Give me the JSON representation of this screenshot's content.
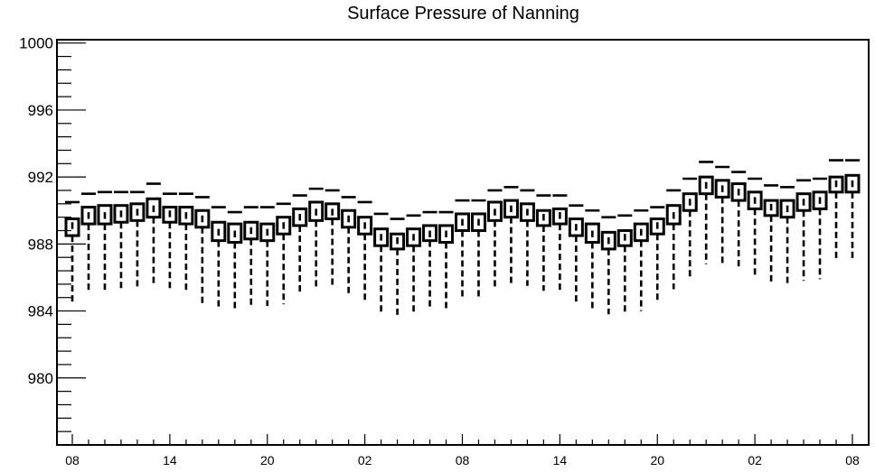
{
  "chart_data": {
    "type": "box",
    "title": "Surface Pressure of Nanning",
    "xlabel": "",
    "ylabel": "",
    "ylim": [
      976,
      1000.2
    ],
    "y_ticks": [
      980,
      984,
      988,
      992,
      996,
      1000
    ],
    "y_tick_labels": [
      "980",
      "984",
      "988",
      "992",
      "996",
      "1000"
    ],
    "x_tick_labels": [
      "08",
      "14",
      "20",
      "02",
      "08",
      "14",
      "20",
      "02",
      "08"
    ],
    "x_tick_positions": [
      0,
      6,
      12,
      18,
      24,
      30,
      36,
      42,
      48
    ],
    "grid": false,
    "series": [
      {
        "box_ranges": [
          [
            988.5,
            989.5
          ],
          [
            989.2,
            990.2
          ],
          [
            989.2,
            990.3
          ],
          [
            989.3,
            990.3
          ],
          [
            989.4,
            990.4
          ],
          [
            989.6,
            990.7
          ],
          [
            989.3,
            990.2
          ],
          [
            989.2,
            990.2
          ],
          [
            989.0,
            990.0
          ],
          [
            988.2,
            989.3
          ],
          [
            988.1,
            989.2
          ],
          [
            988.3,
            989.3
          ],
          [
            988.2,
            989.2
          ],
          [
            988.6,
            989.6
          ],
          [
            989.1,
            990.1
          ],
          [
            989.4,
            990.5
          ],
          [
            989.5,
            990.4
          ],
          [
            989.0,
            990.0
          ],
          [
            988.6,
            989.6
          ],
          [
            987.9,
            988.9
          ],
          [
            987.7,
            988.6
          ],
          [
            987.9,
            988.9
          ],
          [
            988.2,
            989.1
          ],
          [
            988.1,
            989.1
          ],
          [
            988.8,
            989.8
          ],
          [
            988.8,
            989.8
          ],
          [
            989.4,
            990.5
          ],
          [
            989.6,
            990.6
          ],
          [
            989.4,
            990.4
          ],
          [
            989.1,
            990.0
          ],
          [
            989.2,
            990.1
          ],
          [
            988.5,
            989.5
          ],
          [
            988.1,
            989.2
          ],
          [
            987.7,
            988.7
          ],
          [
            987.9,
            988.8
          ],
          [
            988.2,
            989.2
          ],
          [
            988.6,
            989.5
          ],
          [
            989.2,
            990.3
          ],
          [
            990.0,
            991.0
          ],
          [
            991.0,
            992.0
          ],
          [
            990.8,
            991.8
          ],
          [
            990.6,
            991.6
          ],
          [
            990.1,
            991.1
          ],
          [
            989.7,
            990.6
          ],
          [
            989.6,
            990.6
          ],
          [
            990.0,
            991.0
          ],
          [
            990.1,
            991.1
          ],
          [
            991.1,
            992.0
          ],
          [
            991.1,
            992.1
          ]
        ],
        "whiskers": [
          [
            984.5,
            990.5
          ],
          [
            985.2,
            991.0
          ],
          [
            985.2,
            991.1
          ],
          [
            985.3,
            991.1
          ],
          [
            985.3,
            991.1
          ],
          [
            985.6,
            991.6
          ],
          [
            985.2,
            991.0
          ],
          [
            985.2,
            991.0
          ],
          [
            984.3,
            990.8
          ],
          [
            984.1,
            990.2
          ],
          [
            984.0,
            989.9
          ],
          [
            984.3,
            990.2
          ],
          [
            984.3,
            990.2
          ],
          [
            984.4,
            990.4
          ],
          [
            985.0,
            990.9
          ],
          [
            985.4,
            991.3
          ],
          [
            985.4,
            991.2
          ],
          [
            985.0,
            990.8
          ],
          [
            984.5,
            990.5
          ],
          [
            983.9,
            989.8
          ],
          [
            983.7,
            989.5
          ],
          [
            983.8,
            989.7
          ],
          [
            984.1,
            989.9
          ],
          [
            984.1,
            989.9
          ],
          [
            984.8,
            990.6
          ],
          [
            984.8,
            990.6
          ],
          [
            985.4,
            991.2
          ],
          [
            985.5,
            991.4
          ],
          [
            985.5,
            991.2
          ],
          [
            985.2,
            990.9
          ],
          [
            985.1,
            990.9
          ],
          [
            984.5,
            990.3
          ],
          [
            984.1,
            990.0
          ],
          [
            983.8,
            989.6
          ],
          [
            983.8,
            989.7
          ],
          [
            984.0,
            990.0
          ],
          [
            984.6,
            990.2
          ],
          [
            985.3,
            991.2
          ],
          [
            986.0,
            991.9
          ],
          [
            986.8,
            992.9
          ],
          [
            986.7,
            992.6
          ],
          [
            986.5,
            992.3
          ],
          [
            986.0,
            991.9
          ],
          [
            985.6,
            991.5
          ],
          [
            985.6,
            991.4
          ],
          [
            985.8,
            991.8
          ],
          [
            985.9,
            991.9
          ],
          [
            987.0,
            993.0
          ],
          [
            987.0,
            993.0
          ]
        ],
        "medians": [
          [
            988.9,
            989.3
          ],
          [
            989.5,
            989.9
          ],
          [
            989.5,
            989.9
          ],
          [
            989.6,
            990.0
          ],
          [
            989.7,
            990.1
          ],
          [
            989.9,
            990.3
          ],
          [
            989.6,
            990.0
          ],
          [
            989.5,
            989.9
          ],
          [
            989.3,
            989.7
          ],
          [
            988.5,
            988.9
          ],
          [
            988.4,
            988.8
          ],
          [
            988.6,
            989.0
          ],
          [
            988.5,
            988.9
          ],
          [
            988.9,
            989.3
          ],
          [
            989.4,
            989.8
          ],
          [
            989.7,
            990.1
          ],
          [
            989.7,
            990.1
          ],
          [
            989.3,
            989.7
          ],
          [
            988.9,
            989.3
          ],
          [
            988.2,
            988.6
          ],
          [
            988.0,
            988.4
          ],
          [
            988.2,
            988.6
          ],
          [
            988.4,
            988.8
          ],
          [
            988.4,
            988.8
          ],
          [
            989.1,
            989.5
          ],
          [
            989.1,
            989.5
          ],
          [
            989.7,
            990.1
          ],
          [
            989.9,
            990.3
          ],
          [
            989.7,
            990.1
          ],
          [
            989.4,
            989.8
          ],
          [
            989.5,
            989.9
          ],
          [
            988.8,
            989.2
          ],
          [
            988.4,
            988.8
          ],
          [
            988.0,
            988.4
          ],
          [
            988.2,
            988.6
          ],
          [
            988.5,
            988.9
          ],
          [
            988.9,
            989.3
          ],
          [
            989.5,
            989.9
          ],
          [
            990.3,
            990.7
          ],
          [
            991.3,
            991.7
          ],
          [
            991.1,
            991.5
          ],
          [
            990.9,
            991.3
          ],
          [
            990.4,
            990.8
          ],
          [
            990.0,
            990.4
          ],
          [
            989.9,
            990.3
          ],
          [
            990.3,
            990.7
          ],
          [
            990.4,
            990.8
          ],
          [
            991.4,
            991.8
          ],
          [
            991.4,
            991.8
          ]
        ]
      }
    ]
  }
}
